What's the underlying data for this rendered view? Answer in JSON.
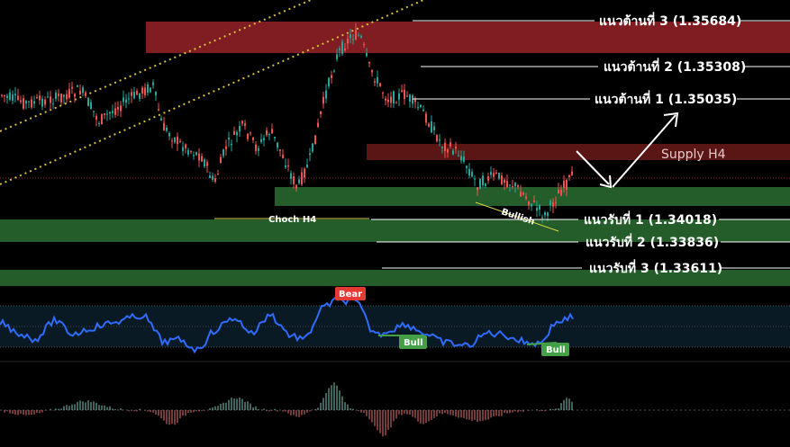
{
  "chart_data": {
    "type": "candlestick",
    "resistance_levels": [
      {
        "label": "แนวต้านที่ 3 (1.35684)",
        "price": 1.35684
      },
      {
        "label": "แนวต้านที่ 2 (1.35308)",
        "price": 1.35308
      },
      {
        "label": "แนวต้านที่ 1 (1.35035)",
        "price": 1.35035
      }
    ],
    "support_levels": [
      {
        "label": "แนวรับที่ 1 (1.34018)",
        "price": 1.34018
      },
      {
        "label": "แนวรับที่ 2 (1.33836)",
        "price": 1.33836
      },
      {
        "label": "แนวรับที่ 3 (1.33611)",
        "price": 1.33611
      }
    ],
    "zones": {
      "supply_label": "Supply H4"
    },
    "annotations": {
      "choch": "Choch H4",
      "bullish_divergence": "Bullish"
    },
    "oscillator": {
      "badges": [
        "Bear",
        "Bull",
        "Bull"
      ]
    },
    "colors": {
      "bull": "#26a69a",
      "bear": "#ef5350",
      "resistance_zone": "#7f1d22",
      "supply_zone": "#5a1515",
      "demand_zone": "#245c2a",
      "oscillator_line": "#2f6bff",
      "channel": "#d6c23a",
      "choch_line": "#d6d64a",
      "bear_badge": "#e53935",
      "bull_badge": "#43a047"
    }
  }
}
